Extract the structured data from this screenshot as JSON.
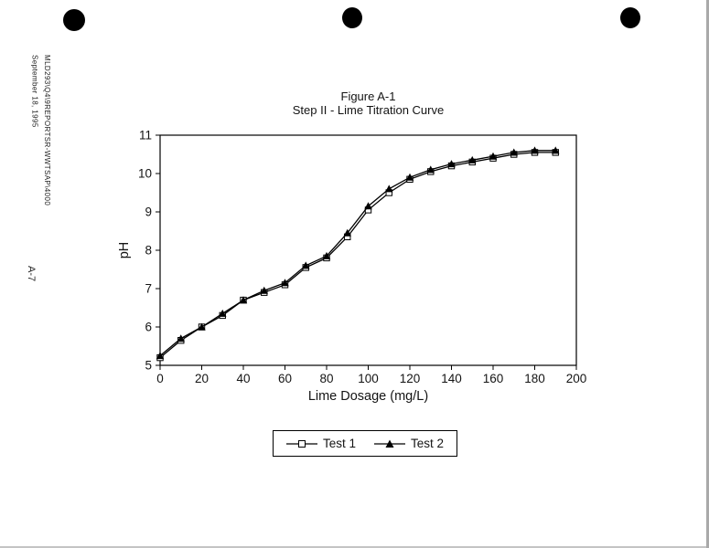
{
  "page": {
    "side_text_line1": "MLD293\\Q4\\9REPORTSR-WWTSAP\\4000",
    "side_text_line2": "September 18, 1995",
    "page_number": "A-7"
  },
  "figure": {
    "title_line1": "Figure A-1",
    "title_line2": "Step II - Lime Titration Curve"
  },
  "chart_data": {
    "type": "line",
    "title": "Figure A-1 / Step II - Lime Titration Curve",
    "xlabel": "Lime Dosage (mg/L)",
    "ylabel": "pH",
    "xlim": [
      0,
      200
    ],
    "ylim": [
      5,
      11
    ],
    "x_ticks": [
      0,
      20,
      40,
      60,
      80,
      100,
      120,
      140,
      160,
      180,
      200
    ],
    "y_ticks": [
      5,
      6,
      7,
      8,
      9,
      10,
      11
    ],
    "grid": false,
    "legend_position": "bottom-center",
    "x": [
      0,
      10,
      20,
      30,
      40,
      50,
      60,
      70,
      80,
      90,
      100,
      110,
      120,
      130,
      140,
      150,
      160,
      170,
      180,
      190
    ],
    "series": [
      {
        "name": "Test 1",
        "marker": "open-square",
        "color": "#000000",
        "values": [
          5.2,
          5.65,
          6.0,
          6.3,
          6.7,
          6.9,
          7.1,
          7.55,
          7.8,
          8.35,
          9.05,
          9.5,
          9.85,
          10.05,
          10.2,
          10.3,
          10.4,
          10.5,
          10.55,
          10.55
        ]
      },
      {
        "name": "Test 2",
        "marker": "filled-triangle",
        "color": "#000000",
        "values": [
          5.25,
          5.7,
          6.0,
          6.35,
          6.7,
          6.95,
          7.15,
          7.6,
          7.85,
          8.45,
          9.15,
          9.6,
          9.9,
          10.1,
          10.25,
          10.35,
          10.45,
          10.55,
          10.6,
          10.6
        ]
      }
    ]
  }
}
